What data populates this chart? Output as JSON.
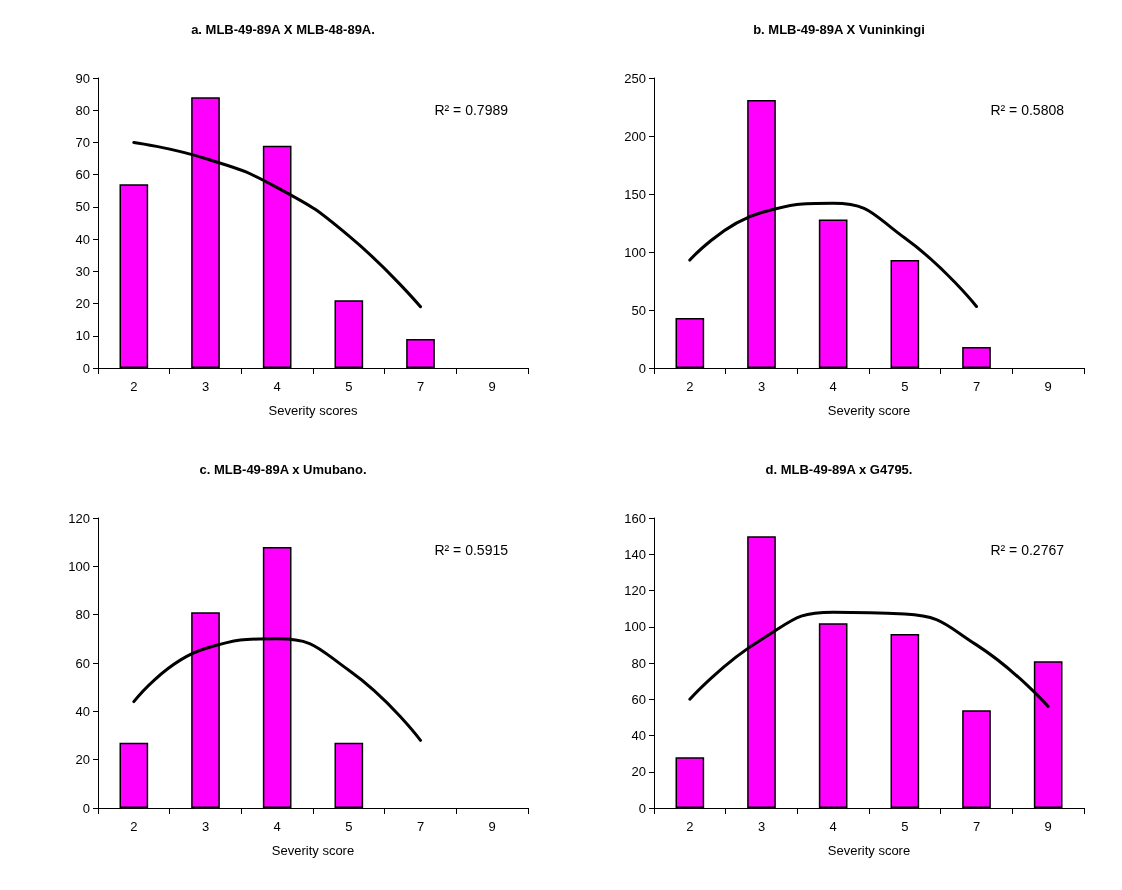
{
  "chart_data": [
    {
      "type": "bar",
      "title": "a. MLB-49-89A X MLB-48-89A.",
      "xlabel": "Severity scores",
      "categories": [
        "2",
        "3",
        "4",
        "5",
        "7",
        "9"
      ],
      "ylim": [
        0,
        90
      ],
      "yticks": [
        0,
        10,
        20,
        30,
        40,
        50,
        60,
        70,
        80,
        90
      ],
      "grid": false,
      "marker": "none",
      "annotations": [
        "R² = 0.7989"
      ],
      "series": [
        {
          "color": "#ff00ff",
          "values": [
            57,
            84,
            69,
            21,
            9,
            null
          ]
        },
        {
          "type": "line",
          "color": "#000000",
          "values": [
            70,
            65,
            56,
            41,
            19,
            null
          ]
        }
      ]
    },
    {
      "type": "bar",
      "title": "b. MLB-49-89A X Vuninkingi",
      "xlabel": "Severity score",
      "categories": [
        "2",
        "3",
        "4",
        "5",
        "7",
        "9"
      ],
      "ylim": [
        0,
        250
      ],
      "yticks": [
        0,
        50,
        100,
        150,
        200,
        250
      ],
      "grid": false,
      "marker": "none",
      "annotations": [
        "R² = 0.5808"
      ],
      "series": [
        {
          "color": "#ff00ff",
          "values": [
            43,
            231,
            128,
            93,
            18,
            null
          ]
        },
        {
          "type": "line",
          "color": "#000000",
          "values": [
            93,
            134,
            142,
            112,
            53,
            null
          ]
        }
      ]
    },
    {
      "type": "bar",
      "title": "c. MLB-49-89A x Umubano.",
      "xlabel": "Severity score",
      "categories": [
        "2",
        "3",
        "4",
        "5",
        "7",
        "9"
      ],
      "ylim": [
        0,
        120
      ],
      "yticks": [
        0,
        20,
        40,
        60,
        80,
        100,
        120
      ],
      "grid": false,
      "marker": "none",
      "annotations": [
        "R² = 0.5915"
      ],
      "series": [
        {
          "color": "#ff00ff",
          "values": [
            27,
            81,
            108,
            27,
            null,
            null
          ]
        },
        {
          "type": "line",
          "color": "#000000",
          "values": [
            44,
            66,
            70,
            57,
            28,
            null
          ]
        }
      ]
    },
    {
      "type": "bar",
      "title": "d. MLB-49-89A x G4795.",
      "xlabel": "Severity score",
      "categories": [
        "2",
        "3",
        "4",
        "5",
        "7",
        "9"
      ],
      "ylim": [
        0,
        160
      ],
      "yticks": [
        0,
        20,
        40,
        60,
        80,
        100,
        120,
        140,
        160
      ],
      "grid": false,
      "marker": "none",
      "annotations": [
        "R² = 0.2767"
      ],
      "series": [
        {
          "color": "#ff00ff",
          "values": [
            28,
            150,
            102,
            96,
            54,
            81
          ]
        },
        {
          "type": "line",
          "color": "#000000",
          "values": [
            60,
            93,
            108,
            107,
            90,
            56
          ]
        }
      ]
    }
  ]
}
